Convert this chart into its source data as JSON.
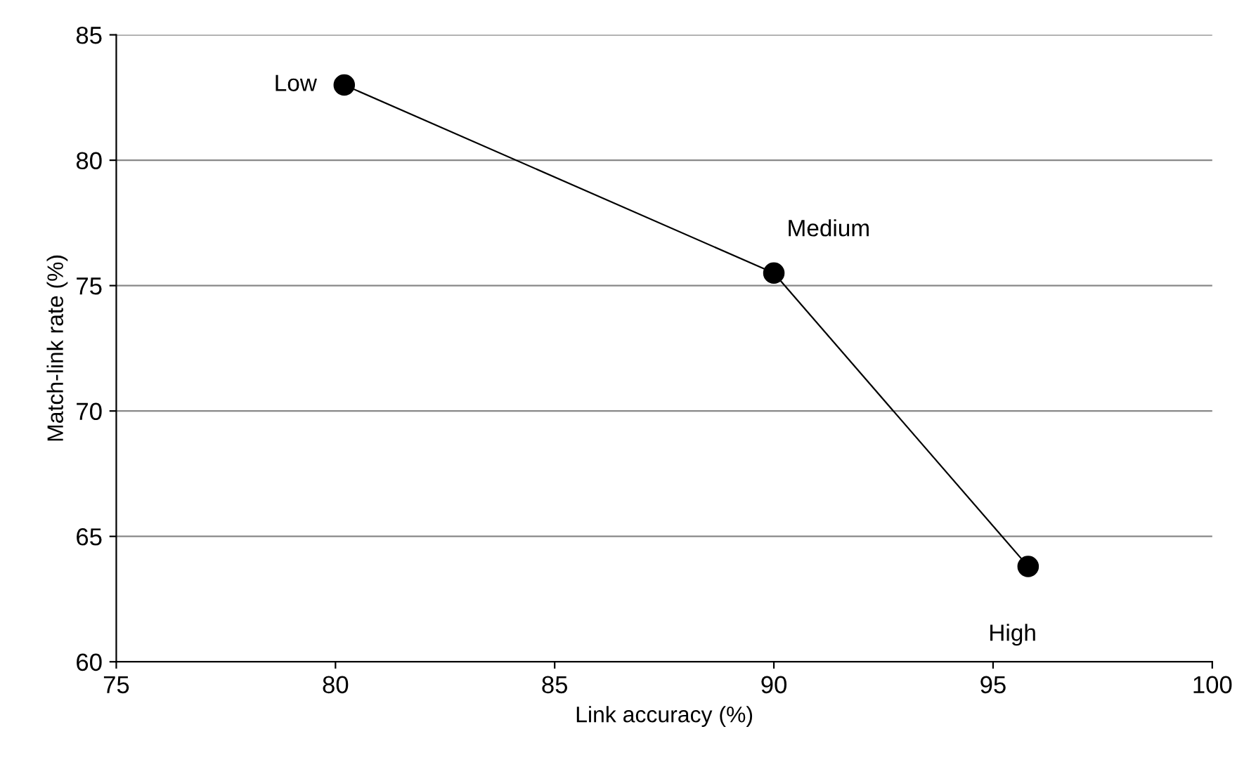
{
  "chart_data": {
    "type": "line",
    "xlabel": "Link accuracy (%)",
    "ylabel": "Match-link rate (%)",
    "series": [
      {
        "color": "#000000",
        "x": [
          80.2,
          90.0,
          95.8
        ],
        "values": [
          83.0,
          75.5,
          63.8
        ]
      }
    ],
    "marker": "circle",
    "line_style": "solid",
    "grid": "y",
    "xlim": [
      75,
      100
    ],
    "xticks": [
      75,
      80,
      85,
      90,
      95,
      100
    ],
    "ylim": [
      60,
      85
    ],
    "yticks": [
      60,
      65,
      70,
      75,
      80,
      85
    ],
    "annotations": [
      {
        "text": "Low",
        "x": 80.2,
        "y": 83.0
      },
      {
        "text": "Medium",
        "x": 90.0,
        "y": 75.5
      },
      {
        "text": "High",
        "x": 95.8,
        "y": 63.8
      }
    ]
  }
}
